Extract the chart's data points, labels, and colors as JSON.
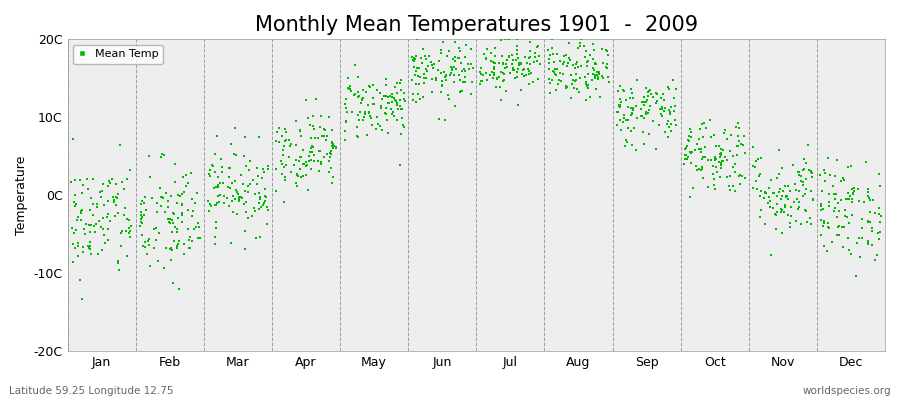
{
  "title": "Monthly Mean Temperatures 1901  -  2009",
  "ylabel": "Temperature",
  "footer_left": "Latitude 59.25 Longitude 12.75",
  "footer_right": "worldspecies.org",
  "legend_label": "Mean Temp",
  "ylim": [
    -20,
    20
  ],
  "yticks": [
    -20,
    -10,
    0,
    10,
    20
  ],
  "ytick_labels": [
    "-20C",
    "-10C",
    "0C",
    "10C",
    "20C"
  ],
  "months": [
    "Jan",
    "Feb",
    "Mar",
    "Apr",
    "May",
    "Jun",
    "Jul",
    "Aug",
    "Sep",
    "Oct",
    "Nov",
    "Dec"
  ],
  "dot_color": "#00bb00",
  "background_color": "#eeeeee",
  "figure_background": "#ffffff",
  "title_fontsize": 15,
  "axis_fontsize": 9,
  "monthly_means": [
    -3.2,
    -3.5,
    0.8,
    5.8,
    11.5,
    15.5,
    16.8,
    15.8,
    10.8,
    5.2,
    0.3,
    -2.0
  ],
  "monthly_stds": [
    3.8,
    4.0,
    2.8,
    2.5,
    2.2,
    2.0,
    1.8,
    1.8,
    2.2,
    2.5,
    2.8,
    3.2
  ],
  "n_years": 109,
  "seed": 42
}
